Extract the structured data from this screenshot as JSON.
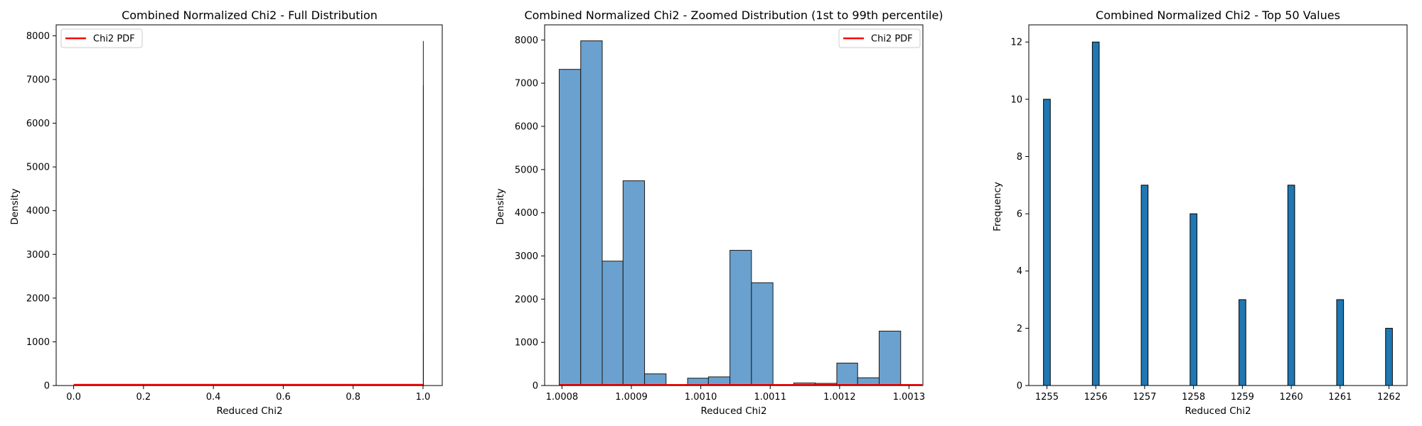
{
  "chart_data": [
    {
      "type": "histogram",
      "title": "Combined Normalized Chi2 - Full Distribution",
      "xlabel": "Reduced Chi2",
      "ylabel": "Density",
      "xlim": [
        -0.05,
        1.055
      ],
      "ylim": [
        0,
        8250
      ],
      "xticks": [
        0.0,
        0.2,
        0.4,
        0.6,
        0.8,
        1.0
      ],
      "xtick_labels": [
        "0.0",
        "0.2",
        "0.4",
        "0.6",
        "0.8",
        "1.0"
      ],
      "yticks": [
        0,
        1000,
        2000,
        3000,
        4000,
        5000,
        6000,
        7000,
        8000
      ],
      "ytick_labels": [
        "0",
        "1000",
        "2000",
        "3000",
        "4000",
        "5000",
        "6000",
        "7000",
        "8000"
      ],
      "spikes": [
        {
          "x": 1.0008,
          "y": 7880
        },
        {
          "x": 1.0009,
          "y": 6870
        },
        {
          "x": 1.001,
          "y": 4520
        },
        {
          "x": 1.0011,
          "y": 3100
        },
        {
          "x": 1.0012,
          "y": 1200
        }
      ],
      "pdf_line": {
        "x": [
          0.0,
          1.0
        ],
        "y": [
          0,
          0
        ],
        "color": "#ff0000"
      },
      "legend": {
        "entries": [
          "Chi2 PDF"
        ],
        "placement": "upper left"
      },
      "grid": false
    },
    {
      "type": "histogram",
      "title": "Combined Normalized Chi2 - Zoomed Distribution (1st to 99th percentile)",
      "xlabel": "Reduced Chi2",
      "ylabel": "Density",
      "xlim": [
        1.000775,
        1.00132
      ],
      "ylim": [
        0,
        8350
      ],
      "xticks": [
        1.0008,
        1.0009,
        1.001,
        1.0011,
        1.0012,
        1.0013
      ],
      "xtick_labels": [
        "1.0008",
        "1.0009",
        "1.0010",
        "1.0011",
        "1.0012",
        "1.0013"
      ],
      "yticks": [
        0,
        1000,
        2000,
        3000,
        4000,
        5000,
        6000,
        7000,
        8000
      ],
      "ytick_labels": [
        "0",
        "1000",
        "2000",
        "3000",
        "4000",
        "5000",
        "6000",
        "7000",
        "8000"
      ],
      "bin_edges": [
        1.000796,
        1.000827,
        1.000858,
        1.000888,
        1.000919,
        1.00095,
        1.000981,
        1.001011,
        1.001042,
        1.001073,
        1.001104,
        1.001134,
        1.001165,
        1.001196,
        1.001226,
        1.001257,
        1.001288,
        1.001319
      ],
      "values": [
        7320,
        7980,
        2880,
        4740,
        270,
        0,
        170,
        200,
        3130,
        2380,
        0,
        60,
        50,
        520,
        180,
        1260,
        0
      ],
      "bar_color": "#6aa1ce",
      "edge_color": "#1a1a1a",
      "pdf_line": {
        "x": [
          1.000796,
          1.001319
        ],
        "y": [
          0,
          0
        ],
        "color": "#ff0000"
      },
      "legend": {
        "entries": [
          "Chi2 PDF"
        ],
        "placement": "upper right"
      },
      "grid": false
    },
    {
      "type": "histogram",
      "title": "Combined Normalized Chi2 - Top 50 Values",
      "xlabel": "Reduced Chi2",
      "ylabel": "Frequency",
      "xlim": [
        1254.63,
        1262.37
      ],
      "ylim": [
        0,
        12.6
      ],
      "xticks": [
        1255,
        1256,
        1257,
        1258,
        1259,
        1260,
        1261,
        1262
      ],
      "xtick_labels": [
        "1255",
        "1256",
        "1257",
        "1258",
        "1259",
        "1260",
        "1261",
        "1262"
      ],
      "yticks": [
        0,
        2,
        4,
        6,
        8,
        10,
        12
      ],
      "ytick_labels": [
        "0",
        "2",
        "4",
        "6",
        "8",
        "10",
        "12"
      ],
      "bar_width": 0.14,
      "bars": [
        {
          "x": 1255,
          "y": 10
        },
        {
          "x": 1256,
          "y": 12
        },
        {
          "x": 1257,
          "y": 7
        },
        {
          "x": 1258,
          "y": 6
        },
        {
          "x": 1259,
          "y": 3
        },
        {
          "x": 1260,
          "y": 7
        },
        {
          "x": 1261,
          "y": 3
        },
        {
          "x": 1262,
          "y": 2
        }
      ],
      "bar_color": "#1f77b4",
      "edge_color": "#000000",
      "grid": false
    }
  ]
}
